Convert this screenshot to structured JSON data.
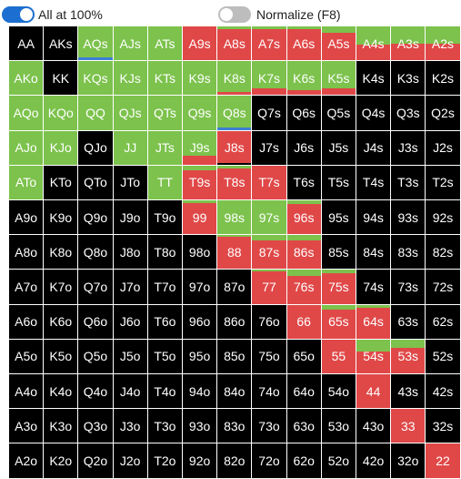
{
  "toolbar": {
    "all_at_100": {
      "label": "All at 100%",
      "on": true
    },
    "normalize": {
      "label": "Normalize (F8)",
      "on": false
    }
  },
  "colors": {
    "raise": "#7cc24c",
    "call": "#e04848",
    "fold": "#000000",
    "toggle_on": "#1c6fd0",
    "toggle_off": "#bdbdbd",
    "accent_line": "#3d7fd6"
  },
  "ranks": [
    "A",
    "K",
    "Q",
    "J",
    "T",
    "9",
    "8",
    "7",
    "6",
    "5",
    "4",
    "3",
    "2"
  ],
  "grid": [
    [
      {
        "label": "AA",
        "raise": 0,
        "call": 0
      },
      {
        "label": "AKs",
        "raise": 0,
        "call": 0
      },
      {
        "label": "AQs",
        "raise": 1,
        "call": 0,
        "accent": true
      },
      {
        "label": "AJs",
        "raise": 1,
        "call": 0
      },
      {
        "label": "ATs",
        "raise": 1,
        "call": 0
      },
      {
        "label": "A9s",
        "raise": 0,
        "call": 1
      },
      {
        "label": "A8s",
        "raise": 0.08,
        "call": 0.92
      },
      {
        "label": "A7s",
        "raise": 0.08,
        "call": 0.92
      },
      {
        "label": "A6s",
        "raise": 0.08,
        "call": 0.92
      },
      {
        "label": "A5s",
        "raise": 0.2,
        "call": 0.8
      },
      {
        "label": "A4s",
        "raise": 0.55,
        "call": 0.45
      },
      {
        "label": "A3s",
        "raise": 0.5,
        "call": 0.5
      },
      {
        "label": "A2s",
        "raise": 0.5,
        "call": 0.5
      }
    ],
    [
      {
        "label": "AKo",
        "raise": 1,
        "call": 0
      },
      {
        "label": "KK",
        "raise": 0,
        "call": 0
      },
      {
        "label": "KQs",
        "raise": 1,
        "call": 0
      },
      {
        "label": "KJs",
        "raise": 1,
        "call": 0
      },
      {
        "label": "KTs",
        "raise": 1,
        "call": 0
      },
      {
        "label": "K9s",
        "raise": 1,
        "call": 0
      },
      {
        "label": "K8s",
        "raise": 0.9,
        "call": 0.1
      },
      {
        "label": "K7s",
        "raise": 0.8,
        "call": 0.2
      },
      {
        "label": "K6s",
        "raise": 0.85,
        "call": 0.15
      },
      {
        "label": "K5s",
        "raise": 0.8,
        "call": 0.2
      },
      {
        "label": "K4s",
        "raise": 0,
        "call": 0
      },
      {
        "label": "K3s",
        "raise": 0,
        "call": 0
      },
      {
        "label": "K2s",
        "raise": 0,
        "call": 0
      }
    ],
    [
      {
        "label": "AQo",
        "raise": 1,
        "call": 0
      },
      {
        "label": "KQo",
        "raise": 1,
        "call": 0
      },
      {
        "label": "QQ",
        "raise": 1,
        "call": 0
      },
      {
        "label": "QJs",
        "raise": 1,
        "call": 0
      },
      {
        "label": "QTs",
        "raise": 1,
        "call": 0
      },
      {
        "label": "Q9s",
        "raise": 1,
        "call": 0
      },
      {
        "label": "Q8s",
        "raise": 1,
        "call": 0,
        "accent": true
      },
      {
        "label": "Q7s",
        "raise": 0,
        "call": 0
      },
      {
        "label": "Q6s",
        "raise": 0,
        "call": 0
      },
      {
        "label": "Q5s",
        "raise": 0,
        "call": 0
      },
      {
        "label": "Q4s",
        "raise": 0,
        "call": 0
      },
      {
        "label": "Q3s",
        "raise": 0,
        "call": 0
      },
      {
        "label": "Q2s",
        "raise": 0,
        "call": 0
      }
    ],
    [
      {
        "label": "AJo",
        "raise": 1,
        "call": 0
      },
      {
        "label": "KJo",
        "raise": 1,
        "call": 0
      },
      {
        "label": "QJo",
        "raise": 0,
        "call": 0
      },
      {
        "label": "JJ",
        "raise": 1,
        "call": 0
      },
      {
        "label": "JTs",
        "raise": 1,
        "call": 0
      },
      {
        "label": "J9s",
        "raise": 0.75,
        "call": 0.25
      },
      {
        "label": "J8s",
        "raise": 0,
        "call": 0.95
      },
      {
        "label": "J7s",
        "raise": 0,
        "call": 0
      },
      {
        "label": "J6s",
        "raise": 0,
        "call": 0
      },
      {
        "label": "J5s",
        "raise": 0,
        "call": 0
      },
      {
        "label": "J4s",
        "raise": 0,
        "call": 0
      },
      {
        "label": "J3s",
        "raise": 0,
        "call": 0
      },
      {
        "label": "J2s",
        "raise": 0,
        "call": 0
      }
    ],
    [
      {
        "label": "ATo",
        "raise": 1,
        "call": 0
      },
      {
        "label": "KTo",
        "raise": 0,
        "call": 0
      },
      {
        "label": "QTo",
        "raise": 0,
        "call": 0
      },
      {
        "label": "JTo",
        "raise": 0,
        "call": 0
      },
      {
        "label": "TT",
        "raise": 1,
        "call": 0
      },
      {
        "label": "T9s",
        "raise": 0.15,
        "call": 0.85
      },
      {
        "label": "T8s",
        "raise": 0.08,
        "call": 0.92
      },
      {
        "label": "T7s",
        "raise": 0,
        "call": 1
      },
      {
        "label": "T6s",
        "raise": 0,
        "call": 0
      },
      {
        "label": "T5s",
        "raise": 0,
        "call": 0
      },
      {
        "label": "T4s",
        "raise": 0,
        "call": 0
      },
      {
        "label": "T3s",
        "raise": 0,
        "call": 0
      },
      {
        "label": "T2s",
        "raise": 0,
        "call": 0
      }
    ],
    [
      {
        "label": "A9o",
        "raise": 0,
        "call": 0
      },
      {
        "label": "K9o",
        "raise": 0,
        "call": 0
      },
      {
        "label": "Q9o",
        "raise": 0,
        "call": 0
      },
      {
        "label": "J9o",
        "raise": 0,
        "call": 0
      },
      {
        "label": "T9o",
        "raise": 0,
        "call": 0
      },
      {
        "label": "99",
        "raise": 0.08,
        "call": 0.92
      },
      {
        "label": "98s",
        "raise": 1,
        "call": 0
      },
      {
        "label": "97s",
        "raise": 1,
        "call": 0
      },
      {
        "label": "96s",
        "raise": 0.12,
        "call": 0.88
      },
      {
        "label": "95s",
        "raise": 0,
        "call": 0
      },
      {
        "label": "94s",
        "raise": 0,
        "call": 0
      },
      {
        "label": "93s",
        "raise": 0,
        "call": 0
      },
      {
        "label": "92s",
        "raise": 0,
        "call": 0
      }
    ],
    [
      {
        "label": "A8o",
        "raise": 0,
        "call": 0
      },
      {
        "label": "K8o",
        "raise": 0,
        "call": 0
      },
      {
        "label": "Q8o",
        "raise": 0,
        "call": 0
      },
      {
        "label": "J8o",
        "raise": 0,
        "call": 0
      },
      {
        "label": "T8o",
        "raise": 0,
        "call": 0
      },
      {
        "label": "98o",
        "raise": 0,
        "call": 0
      },
      {
        "label": "88",
        "raise": 0.05,
        "call": 0.95
      },
      {
        "label": "87s",
        "raise": 0.15,
        "call": 0.85
      },
      {
        "label": "86s",
        "raise": 0.15,
        "call": 0.85
      },
      {
        "label": "85s",
        "raise": 0,
        "call": 0
      },
      {
        "label": "84s",
        "raise": 0,
        "call": 0
      },
      {
        "label": "83s",
        "raise": 0,
        "call": 0
      },
      {
        "label": "82s",
        "raise": 0,
        "call": 0
      }
    ],
    [
      {
        "label": "A7o",
        "raise": 0,
        "call": 0
      },
      {
        "label": "K7o",
        "raise": 0,
        "call": 0
      },
      {
        "label": "Q7o",
        "raise": 0,
        "call": 0
      },
      {
        "label": "J7o",
        "raise": 0,
        "call": 0
      },
      {
        "label": "T7o",
        "raise": 0,
        "call": 0
      },
      {
        "label": "97o",
        "raise": 0,
        "call": 0
      },
      {
        "label": "87o",
        "raise": 0,
        "call": 0
      },
      {
        "label": "77",
        "raise": 0.05,
        "call": 0.95
      },
      {
        "label": "76s",
        "raise": 0.18,
        "call": 0.82
      },
      {
        "label": "75s",
        "raise": 0.1,
        "call": 0.9
      },
      {
        "label": "74s",
        "raise": 0,
        "call": 0
      },
      {
        "label": "73s",
        "raise": 0,
        "call": 0
      },
      {
        "label": "72s",
        "raise": 0,
        "call": 0
      }
    ],
    [
      {
        "label": "A6o",
        "raise": 0,
        "call": 0
      },
      {
        "label": "K6o",
        "raise": 0,
        "call": 0
      },
      {
        "label": "Q6o",
        "raise": 0,
        "call": 0
      },
      {
        "label": "J6o",
        "raise": 0,
        "call": 0
      },
      {
        "label": "T6o",
        "raise": 0,
        "call": 0
      },
      {
        "label": "96o",
        "raise": 0,
        "call": 0
      },
      {
        "label": "86o",
        "raise": 0,
        "call": 0
      },
      {
        "label": "76o",
        "raise": 0,
        "call": 0
      },
      {
        "label": "66",
        "raise": 0,
        "call": 1
      },
      {
        "label": "65s",
        "raise": 0.15,
        "call": 0.85
      },
      {
        "label": "64s",
        "raise": 0.1,
        "call": 0.9
      },
      {
        "label": "63s",
        "raise": 0,
        "call": 0
      },
      {
        "label": "62s",
        "raise": 0,
        "call": 0
      }
    ],
    [
      {
        "label": "A5o",
        "raise": 0,
        "call": 0
      },
      {
        "label": "K5o",
        "raise": 0,
        "call": 0
      },
      {
        "label": "Q5o",
        "raise": 0,
        "call": 0
      },
      {
        "label": "J5o",
        "raise": 0,
        "call": 0
      },
      {
        "label": "T5o",
        "raise": 0,
        "call": 0
      },
      {
        "label": "95o",
        "raise": 0,
        "call": 0
      },
      {
        "label": "85o",
        "raise": 0,
        "call": 0
      },
      {
        "label": "75o",
        "raise": 0,
        "call": 0
      },
      {
        "label": "65o",
        "raise": 0,
        "call": 0
      },
      {
        "label": "55",
        "raise": 0,
        "call": 1
      },
      {
        "label": "54s",
        "raise": 0.35,
        "call": 0.65
      },
      {
        "label": "53s",
        "raise": 0.25,
        "call": 0.75
      },
      {
        "label": "52s",
        "raise": 0,
        "call": 0
      }
    ],
    [
      {
        "label": "A4o",
        "raise": 0,
        "call": 0
      },
      {
        "label": "K4o",
        "raise": 0,
        "call": 0
      },
      {
        "label": "Q4o",
        "raise": 0,
        "call": 0
      },
      {
        "label": "J4o",
        "raise": 0,
        "call": 0
      },
      {
        "label": "T4o",
        "raise": 0,
        "call": 0
      },
      {
        "label": "94o",
        "raise": 0,
        "call": 0
      },
      {
        "label": "84o",
        "raise": 0,
        "call": 0
      },
      {
        "label": "74o",
        "raise": 0,
        "call": 0
      },
      {
        "label": "64o",
        "raise": 0,
        "call": 0
      },
      {
        "label": "54o",
        "raise": 0,
        "call": 0
      },
      {
        "label": "44",
        "raise": 0,
        "call": 1
      },
      {
        "label": "43s",
        "raise": 0,
        "call": 0
      },
      {
        "label": "42s",
        "raise": 0,
        "call": 0
      }
    ],
    [
      {
        "label": "A3o",
        "raise": 0,
        "call": 0
      },
      {
        "label": "K3o",
        "raise": 0,
        "call": 0
      },
      {
        "label": "Q3o",
        "raise": 0,
        "call": 0
      },
      {
        "label": "J3o",
        "raise": 0,
        "call": 0
      },
      {
        "label": "T3o",
        "raise": 0,
        "call": 0
      },
      {
        "label": "93o",
        "raise": 0,
        "call": 0
      },
      {
        "label": "83o",
        "raise": 0,
        "call": 0
      },
      {
        "label": "73o",
        "raise": 0,
        "call": 0
      },
      {
        "label": "63o",
        "raise": 0,
        "call": 0
      },
      {
        "label": "53o",
        "raise": 0,
        "call": 0
      },
      {
        "label": "43o",
        "raise": 0,
        "call": 0
      },
      {
        "label": "33",
        "raise": 0,
        "call": 1
      },
      {
        "label": "32s",
        "raise": 0,
        "call": 0
      }
    ],
    [
      {
        "label": "A2o",
        "raise": 0,
        "call": 0
      },
      {
        "label": "K2o",
        "raise": 0,
        "call": 0
      },
      {
        "label": "Q2o",
        "raise": 0,
        "call": 0
      },
      {
        "label": "J2o",
        "raise": 0,
        "call": 0
      },
      {
        "label": "T2o",
        "raise": 0,
        "call": 0
      },
      {
        "label": "92o",
        "raise": 0,
        "call": 0
      },
      {
        "label": "82o",
        "raise": 0,
        "call": 0
      },
      {
        "label": "72o",
        "raise": 0,
        "call": 0
      },
      {
        "label": "62o",
        "raise": 0,
        "call": 0
      },
      {
        "label": "52o",
        "raise": 0,
        "call": 0
      },
      {
        "label": "42o",
        "raise": 0,
        "call": 0
      },
      {
        "label": "32o",
        "raise": 0,
        "call": 0
      },
      {
        "label": "22",
        "raise": 0,
        "call": 1
      }
    ]
  ]
}
